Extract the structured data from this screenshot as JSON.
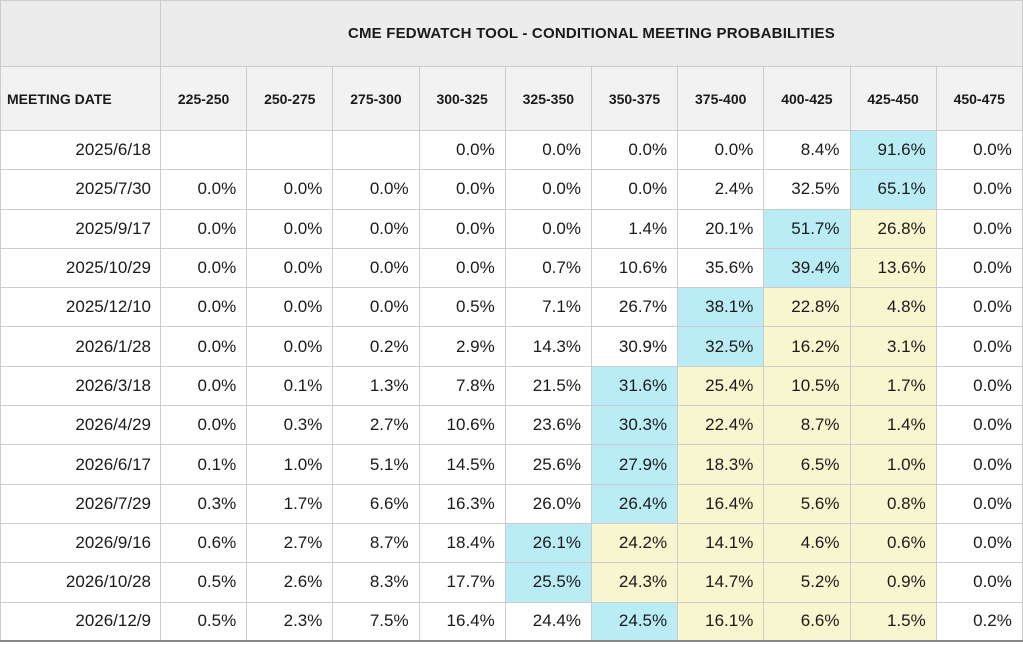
{
  "chart_data": {
    "type": "table",
    "title": "CME FEDWATCH TOOL - CONDITIONAL MEETING PROBABILITIES",
    "row_header": "MEETING DATE",
    "columns": [
      "225-250",
      "250-275",
      "275-300",
      "300-325",
      "325-350",
      "350-375",
      "375-400",
      "400-425",
      "425-450",
      "450-475"
    ],
    "rows": [
      {
        "date": "2025/6/18",
        "values": [
          "",
          "",
          "",
          "0.0%",
          "0.0%",
          "0.0%",
          "0.0%",
          "8.4%",
          "91.6%",
          "0.0%"
        ],
        "mode_col": 8
      },
      {
        "date": "2025/7/30",
        "values": [
          "0.0%",
          "0.0%",
          "0.0%",
          "0.0%",
          "0.0%",
          "0.0%",
          "2.4%",
          "32.5%",
          "65.1%",
          "0.0%"
        ],
        "mode_col": 8
      },
      {
        "date": "2025/9/17",
        "values": [
          "0.0%",
          "0.0%",
          "0.0%",
          "0.0%",
          "0.0%",
          "1.4%",
          "20.1%",
          "51.7%",
          "26.8%",
          "0.0%"
        ],
        "mode_col": 7
      },
      {
        "date": "2025/10/29",
        "values": [
          "0.0%",
          "0.0%",
          "0.0%",
          "0.0%",
          "0.7%",
          "10.6%",
          "35.6%",
          "39.4%",
          "13.6%",
          "0.0%"
        ],
        "mode_col": 7
      },
      {
        "date": "2025/12/10",
        "values": [
          "0.0%",
          "0.0%",
          "0.0%",
          "0.5%",
          "7.1%",
          "26.7%",
          "38.1%",
          "22.8%",
          "4.8%",
          "0.0%"
        ],
        "mode_col": 6
      },
      {
        "date": "2026/1/28",
        "values": [
          "0.0%",
          "0.0%",
          "0.2%",
          "2.9%",
          "14.3%",
          "30.9%",
          "32.5%",
          "16.2%",
          "3.1%",
          "0.0%"
        ],
        "mode_col": 6
      },
      {
        "date": "2026/3/18",
        "values": [
          "0.0%",
          "0.1%",
          "1.3%",
          "7.8%",
          "21.5%",
          "31.6%",
          "25.4%",
          "10.5%",
          "1.7%",
          "0.0%"
        ],
        "mode_col": 5
      },
      {
        "date": "2026/4/29",
        "values": [
          "0.0%",
          "0.3%",
          "2.7%",
          "10.6%",
          "23.6%",
          "30.3%",
          "22.4%",
          "8.7%",
          "1.4%",
          "0.0%"
        ],
        "mode_col": 5
      },
      {
        "date": "2026/6/17",
        "values": [
          "0.1%",
          "1.0%",
          "5.1%",
          "14.5%",
          "25.6%",
          "27.9%",
          "18.3%",
          "6.5%",
          "1.0%",
          "0.0%"
        ],
        "mode_col": 5
      },
      {
        "date": "2026/7/29",
        "values": [
          "0.3%",
          "1.7%",
          "6.6%",
          "16.3%",
          "26.0%",
          "26.4%",
          "16.4%",
          "5.6%",
          "0.8%",
          "0.0%"
        ],
        "mode_col": 5
      },
      {
        "date": "2026/9/16",
        "values": [
          "0.6%",
          "2.7%",
          "8.7%",
          "18.4%",
          "26.1%",
          "24.2%",
          "14.1%",
          "4.6%",
          "0.6%",
          "0.0%"
        ],
        "mode_col": 4
      },
      {
        "date": "2026/10/28",
        "values": [
          "0.5%",
          "2.6%",
          "8.3%",
          "17.7%",
          "25.5%",
          "24.3%",
          "14.7%",
          "5.2%",
          "0.9%",
          "0.0%"
        ],
        "mode_col": 4
      },
      {
        "date": "2026/12/9",
        "values": [
          "0.5%",
          "2.3%",
          "7.5%",
          "16.4%",
          "24.4%",
          "24.5%",
          "16.1%",
          "6.6%",
          "1.5%",
          "0.2%"
        ],
        "mode_col": 5
      }
    ],
    "highlight": {
      "mode_color": "#b9ecf5",
      "above_mode_color": "#f8f6cf",
      "above_mode_applies_up_to_col": 8
    }
  }
}
